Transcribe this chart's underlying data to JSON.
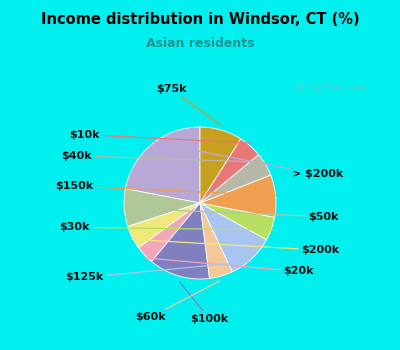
{
  "title": "Income distribution in Windsor, CT (%)",
  "subtitle": "Asian residents",
  "title_color": "#000000",
  "subtitle_color": "#2a9090",
  "bg_cyan": "#00f0f0",
  "bg_chart": "#e0f0e8",
  "watermark": "ⓘ City-Data.com",
  "labels": [
    "> $200k",
    "$50k",
    "$200k",
    "$20k",
    "$100k",
    "$60k",
    "$125k",
    "$30k",
    "$150k",
    "$40k",
    "$10k",
    "$75k"
  ],
  "values": [
    22,
    8,
    5,
    4,
    13,
    5,
    10,
    5,
    9,
    5,
    5,
    9
  ],
  "colors": [
    "#b8a8d8",
    "#b0c898",
    "#f0e87a",
    "#f0a8b8",
    "#8080c0",
    "#f5c89a",
    "#a8c4f0",
    "#b8e060",
    "#f0a050",
    "#b8b8a8",
    "#e87878",
    "#c8a020"
  ],
  "label_fontsize": 8,
  "startangle": 90
}
